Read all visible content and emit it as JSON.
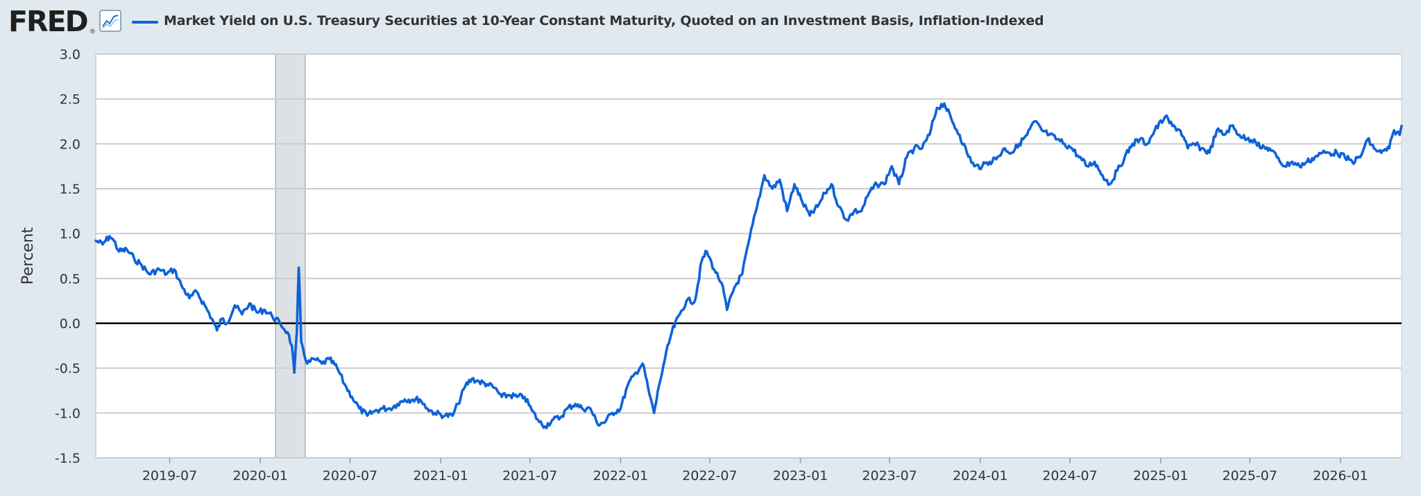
{
  "header": {
    "logo_text": "FRED",
    "logo_mark": "®",
    "graph_icon": "line-chart-icon",
    "series_title": "Market Yield on U.S. Treasury Securities at 10-Year Constant Maturity, Quoted on an Investment Basis, Inflation-Indexed"
  },
  "colors": {
    "page_background": "#e1e9f0",
    "plot_background": "#ffffff",
    "series_line": "#0e62d8",
    "gridline": "#cccccc",
    "recession_shade": "#dde1e6",
    "zero_line": "#000000"
  },
  "chart_data": {
    "type": "line",
    "ylabel": "Percent",
    "ylim": [
      -1.5,
      3.0
    ],
    "y_ticks": [
      "3.0",
      "2.5",
      "2.0",
      "1.5",
      "1.0",
      "0.5",
      "0.0",
      "-0.5",
      "-1.0",
      "-1.5"
    ],
    "y_tick_values": [
      3.0,
      2.5,
      2.0,
      1.5,
      1.0,
      0.5,
      0.0,
      -0.5,
      -1.0,
      -1.5
    ],
    "xlim": [
      "2019-02-01",
      "2026-05-05"
    ],
    "x_ticks": [
      "2019-07",
      "2020-01",
      "2020-07",
      "2021-01",
      "2021-07",
      "2022-01",
      "2022-07",
      "2023-01",
      "2023-07",
      "2024-01",
      "2024-07",
      "2025-01",
      "2025-07",
      "2026-01"
    ],
    "grid": true,
    "legend": "top-left",
    "recessions": [
      {
        "start": "2020-02-01",
        "end": "2020-04-01"
      }
    ],
    "series": [
      {
        "name": "Market Yield on U.S. Treasury Securities at 10-Year Constant Maturity, Quoted on an Investment Basis, Inflation-Indexed",
        "points": [
          [
            "2019-02-01",
            0.92
          ],
          [
            "2019-02-15",
            0.88
          ],
          [
            "2019-03-01",
            0.97
          ],
          [
            "2019-03-10",
            0.92
          ],
          [
            "2019-03-20",
            0.8
          ],
          [
            "2019-04-05",
            0.82
          ],
          [
            "2019-04-20",
            0.72
          ],
          [
            "2019-05-05",
            0.65
          ],
          [
            "2019-05-20",
            0.55
          ],
          [
            "2019-06-10",
            0.6
          ],
          [
            "2019-06-25",
            0.55
          ],
          [
            "2019-07-10",
            0.6
          ],
          [
            "2019-07-25",
            0.42
          ],
          [
            "2019-08-10",
            0.28
          ],
          [
            "2019-08-25",
            0.35
          ],
          [
            "2019-09-10",
            0.2
          ],
          [
            "2019-09-25",
            0.05
          ],
          [
            "2019-10-05",
            -0.08
          ],
          [
            "2019-10-15",
            0.05
          ],
          [
            "2019-10-25",
            0.0
          ],
          [
            "2019-11-10",
            0.2
          ],
          [
            "2019-11-25",
            0.1
          ],
          [
            "2019-12-10",
            0.22
          ],
          [
            "2019-12-25",
            0.12
          ],
          [
            "2020-01-10",
            0.15
          ],
          [
            "2020-01-25",
            0.08
          ],
          [
            "2020-02-10",
            0.0
          ],
          [
            "2020-02-25",
            -0.1
          ],
          [
            "2020-03-05",
            -0.25
          ],
          [
            "2020-03-10",
            -0.55
          ],
          [
            "2020-03-15",
            -0.1
          ],
          [
            "2020-03-19",
            0.62
          ],
          [
            "2020-03-24",
            -0.2
          ],
          [
            "2020-04-05",
            -0.45
          ],
          [
            "2020-04-20",
            -0.4
          ],
          [
            "2020-05-05",
            -0.45
          ],
          [
            "2020-05-20",
            -0.4
          ],
          [
            "2020-06-05",
            -0.5
          ],
          [
            "2020-06-20",
            -0.68
          ],
          [
            "2020-07-05",
            -0.82
          ],
          [
            "2020-07-20",
            -0.95
          ],
          [
            "2020-08-05",
            -1.03
          ],
          [
            "2020-08-20",
            -0.98
          ],
          [
            "2020-09-05",
            -0.95
          ],
          [
            "2020-09-20",
            -0.95
          ],
          [
            "2020-10-05",
            -0.9
          ],
          [
            "2020-10-20",
            -0.85
          ],
          [
            "2020-11-05",
            -0.85
          ],
          [
            "2020-11-20",
            -0.85
          ],
          [
            "2020-12-05",
            -0.95
          ],
          [
            "2020-12-20",
            -1.0
          ],
          [
            "2021-01-10",
            -1.03
          ],
          [
            "2021-01-25",
            -1.03
          ],
          [
            "2021-02-05",
            -0.9
          ],
          [
            "2021-02-20",
            -0.7
          ],
          [
            "2021-03-05",
            -0.62
          ],
          [
            "2021-03-20",
            -0.65
          ],
          [
            "2021-04-05",
            -0.68
          ],
          [
            "2021-04-20",
            -0.72
          ],
          [
            "2021-05-05",
            -0.82
          ],
          [
            "2021-05-20",
            -0.8
          ],
          [
            "2021-06-05",
            -0.82
          ],
          [
            "2021-06-20",
            -0.82
          ],
          [
            "2021-07-05",
            -0.97
          ],
          [
            "2021-07-20",
            -1.1
          ],
          [
            "2021-08-01",
            -1.15
          ],
          [
            "2021-08-15",
            -1.08
          ],
          [
            "2021-09-01",
            -1.05
          ],
          [
            "2021-09-15",
            -0.95
          ],
          [
            "2021-10-01",
            -0.9
          ],
          [
            "2021-10-15",
            -0.95
          ],
          [
            "2021-11-01",
            -0.95
          ],
          [
            "2021-11-15",
            -1.12
          ],
          [
            "2021-12-01",
            -1.1
          ],
          [
            "2021-12-15",
            -1.0
          ],
          [
            "2022-01-01",
            -0.95
          ],
          [
            "2022-01-15",
            -0.7
          ],
          [
            "2022-02-01",
            -0.55
          ],
          [
            "2022-02-15",
            -0.45
          ],
          [
            "2022-03-01",
            -0.8
          ],
          [
            "2022-03-10",
            -1.0
          ],
          [
            "2022-03-20",
            -0.7
          ],
          [
            "2022-04-01",
            -0.4
          ],
          [
            "2022-04-15",
            -0.1
          ],
          [
            "2022-05-01",
            0.1
          ],
          [
            "2022-05-15",
            0.25
          ],
          [
            "2022-06-01",
            0.25
          ],
          [
            "2022-06-15",
            0.7
          ],
          [
            "2022-06-25",
            0.8
          ],
          [
            "2022-07-10",
            0.6
          ],
          [
            "2022-07-25",
            0.45
          ],
          [
            "2022-08-05",
            0.15
          ],
          [
            "2022-08-20",
            0.4
          ],
          [
            "2022-09-05",
            0.55
          ],
          [
            "2022-09-20",
            0.95
          ],
          [
            "2022-10-05",
            1.3
          ],
          [
            "2022-10-20",
            1.65
          ],
          [
            "2022-11-05",
            1.5
          ],
          [
            "2022-11-20",
            1.6
          ],
          [
            "2022-12-05",
            1.25
          ],
          [
            "2022-12-20",
            1.55
          ],
          [
            "2023-01-05",
            1.35
          ],
          [
            "2023-01-20",
            1.2
          ],
          [
            "2023-02-05",
            1.3
          ],
          [
            "2023-02-20",
            1.45
          ],
          [
            "2023-03-05",
            1.55
          ],
          [
            "2023-03-20",
            1.3
          ],
          [
            "2023-04-05",
            1.15
          ],
          [
            "2023-04-20",
            1.25
          ],
          [
            "2023-05-05",
            1.25
          ],
          [
            "2023-05-20",
            1.45
          ],
          [
            "2023-06-05",
            1.55
          ],
          [
            "2023-06-20",
            1.55
          ],
          [
            "2023-07-05",
            1.75
          ],
          [
            "2023-07-20",
            1.55
          ],
          [
            "2023-08-05",
            1.85
          ],
          [
            "2023-08-20",
            1.95
          ],
          [
            "2023-09-05",
            1.95
          ],
          [
            "2023-09-20",
            2.1
          ],
          [
            "2023-10-05",
            2.4
          ],
          [
            "2023-10-20",
            2.45
          ],
          [
            "2023-11-05",
            2.25
          ],
          [
            "2023-11-20",
            2.1
          ],
          [
            "2023-12-05",
            1.9
          ],
          [
            "2023-12-20",
            1.75
          ],
          [
            "2024-01-05",
            1.75
          ],
          [
            "2024-01-20",
            1.8
          ],
          [
            "2024-02-05",
            1.85
          ],
          [
            "2024-02-20",
            1.95
          ],
          [
            "2024-03-05",
            1.9
          ],
          [
            "2024-03-20",
            2.0
          ],
          [
            "2024-04-05",
            2.1
          ],
          [
            "2024-04-20",
            2.25
          ],
          [
            "2024-05-05",
            2.15
          ],
          [
            "2024-05-20",
            2.1
          ],
          [
            "2024-06-05",
            2.05
          ],
          [
            "2024-06-20",
            2.0
          ],
          [
            "2024-07-05",
            1.95
          ],
          [
            "2024-07-20",
            1.85
          ],
          [
            "2024-08-05",
            1.75
          ],
          [
            "2024-08-20",
            1.8
          ],
          [
            "2024-09-05",
            1.65
          ],
          [
            "2024-09-20",
            1.55
          ],
          [
            "2024-10-05",
            1.7
          ],
          [
            "2024-10-20",
            1.85
          ],
          [
            "2024-11-05",
            2.0
          ],
          [
            "2024-11-20",
            2.05
          ],
          [
            "2024-12-05",
            2.0
          ],
          [
            "2024-12-20",
            2.15
          ],
          [
            "2025-01-10",
            2.3
          ],
          [
            "2025-01-25",
            2.2
          ],
          [
            "2025-02-10",
            2.15
          ],
          [
            "2025-02-25",
            1.95
          ],
          [
            "2025-03-10",
            2.0
          ],
          [
            "2025-03-25",
            1.95
          ],
          [
            "2025-04-10",
            1.9
          ],
          [
            "2025-04-25",
            2.15
          ],
          [
            "2025-05-10",
            2.1
          ],
          [
            "2025-05-25",
            2.2
          ],
          [
            "2025-06-10",
            2.1
          ],
          [
            "2025-06-25",
            2.05
          ],
          [
            "2025-07-10",
            2.05
          ],
          [
            "2025-07-25",
            1.95
          ],
          [
            "2025-08-10",
            1.95
          ],
          [
            "2025-08-25",
            1.85
          ],
          [
            "2025-09-10",
            1.75
          ],
          [
            "2025-09-25",
            1.8
          ],
          [
            "2025-10-10",
            1.75
          ],
          [
            "2025-10-25",
            1.8
          ],
          [
            "2025-11-10",
            1.85
          ],
          [
            "2025-11-25",
            1.9
          ],
          [
            "2025-12-10",
            1.9
          ],
          [
            "2025-12-25",
            1.9
          ],
          [
            "2026-01-10",
            1.85
          ],
          [
            "2026-01-25",
            1.8
          ],
          [
            "2026-02-10",
            1.85
          ],
          [
            "2026-02-25",
            2.05
          ],
          [
            "2026-03-10",
            1.95
          ],
          [
            "2026-03-25",
            1.9
          ],
          [
            "2026-04-10",
            1.95
          ],
          [
            "2026-04-20",
            2.15
          ],
          [
            "2026-05-01",
            2.1
          ],
          [
            "2026-05-05",
            2.2
          ]
        ]
      }
    ]
  }
}
